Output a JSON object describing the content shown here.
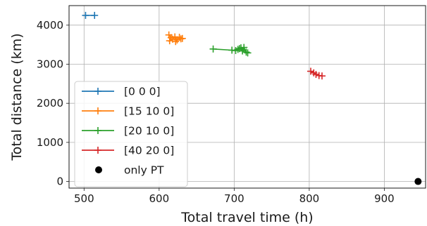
{
  "chart_data": {
    "type": "scatter",
    "xlabel": "Total travel time (h)",
    "ylabel": "Total distance (km)",
    "xlim": [
      480,
      955
    ],
    "ylim": [
      -170,
      4500
    ],
    "xticks": [
      500,
      600,
      700,
      800,
      900
    ],
    "yticks": [
      0,
      1000,
      2000,
      3000,
      4000
    ],
    "grid": true,
    "legend_position": "lower-left",
    "series": [
      {
        "name": "[0 0 0]",
        "color": "#1f77b4",
        "marker": "plus-line",
        "points": [
          [
            502,
            4250
          ],
          [
            514,
            4250
          ]
        ]
      },
      {
        "name": "[15 10  0]",
        "color": "#ff7f0e",
        "marker": "plus-line",
        "points": [
          [
            613,
            3750
          ],
          [
            616,
            3680
          ],
          [
            614,
            3600
          ],
          [
            618,
            3640
          ],
          [
            621,
            3700
          ],
          [
            624,
            3620
          ],
          [
            622,
            3580
          ],
          [
            627,
            3690
          ],
          [
            629,
            3650
          ],
          [
            631,
            3660
          ]
        ]
      },
      {
        "name": "[20 10  0]",
        "color": "#2ca02c",
        "marker": "plus-line",
        "points": [
          [
            672,
            3390
          ],
          [
            697,
            3360
          ],
          [
            702,
            3350
          ],
          [
            705,
            3380
          ],
          [
            707,
            3400
          ],
          [
            709,
            3420
          ],
          [
            711,
            3340
          ],
          [
            713,
            3430
          ],
          [
            716,
            3310
          ],
          [
            718,
            3290
          ]
        ]
      },
      {
        "name": "[40 20  0]",
        "color": "#d62728",
        "marker": "plus-line",
        "points": [
          [
            802,
            2820
          ],
          [
            806,
            2780
          ],
          [
            809,
            2740
          ],
          [
            813,
            2710
          ],
          [
            817,
            2700
          ]
        ]
      },
      {
        "name": "only PT",
        "color": "#000000",
        "marker": "dot",
        "points": [
          [
            945,
            0
          ]
        ]
      }
    ]
  }
}
